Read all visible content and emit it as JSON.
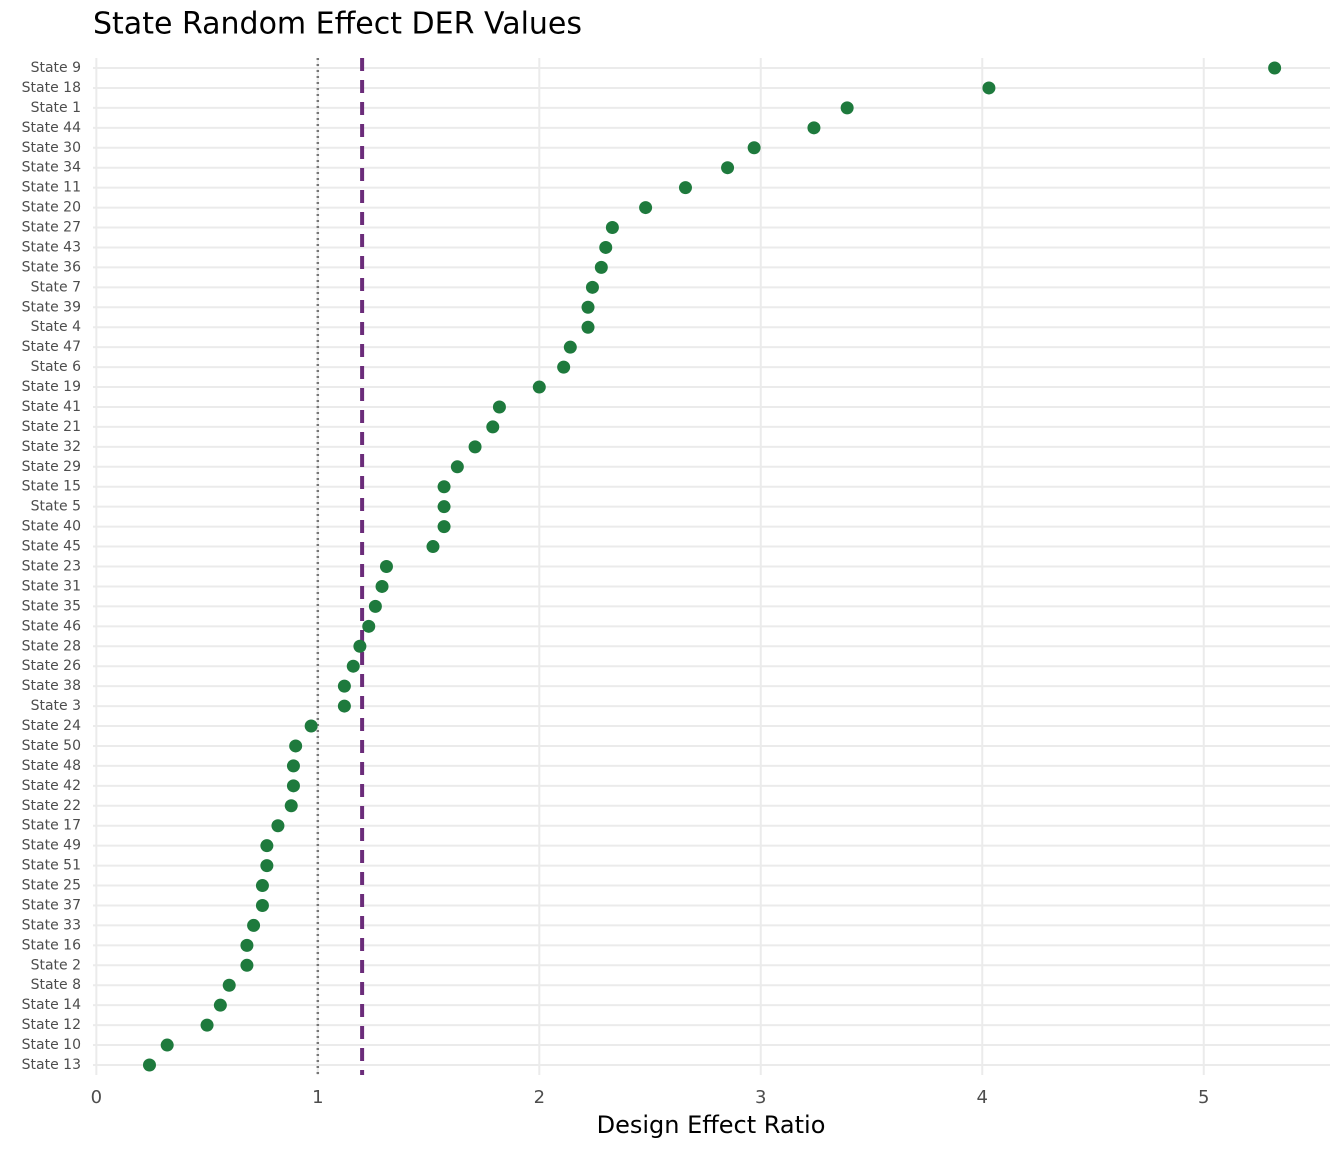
{
  "chart_data": {
    "type": "dot",
    "title": "State Random Effect DER Values",
    "x_label": "Design Effect Ratio",
    "categories": [
      "State 9",
      "State 18",
      "State 1",
      "State 44",
      "State 30",
      "State 34",
      "State 11",
      "State 20",
      "State 27",
      "State 43",
      "State 36",
      "State 7",
      "State 39",
      "State 4",
      "State 47",
      "State 6",
      "State 19",
      "State 41",
      "State 21",
      "State 32",
      "State 29",
      "State 15",
      "State 5",
      "State 40",
      "State 45",
      "State 23",
      "State 31",
      "State 35",
      "State 46",
      "State 28",
      "State 26",
      "State 38",
      "State 3",
      "State 24",
      "State 50",
      "State 48",
      "State 42",
      "State 22",
      "State 17",
      "State 49",
      "State 51",
      "State 25",
      "State 37",
      "State 33",
      "State 16",
      "State 2",
      "State 8",
      "State 14",
      "State 12",
      "State 10",
      "State 13"
    ],
    "values": [
      5.32,
      4.03,
      3.39,
      3.24,
      2.97,
      2.85,
      2.66,
      2.48,
      2.33,
      2.3,
      2.28,
      2.24,
      2.22,
      2.22,
      2.14,
      2.11,
      2.0,
      1.82,
      1.79,
      1.71,
      1.63,
      1.57,
      1.57,
      1.57,
      1.52,
      1.31,
      1.29,
      1.26,
      1.23,
      1.19,
      1.16,
      1.12,
      1.12,
      0.97,
      0.9,
      0.89,
      0.89,
      0.88,
      0.82,
      0.77,
      0.77,
      0.75,
      0.75,
      0.71,
      0.68,
      0.68,
      0.6,
      0.56,
      0.5,
      0.32,
      0.24
    ],
    "color": "#1e7a3d",
    "xlim": [
      -0.015,
      5.57
    ],
    "xticks": [
      0,
      1,
      2,
      3,
      4,
      5
    ],
    "grid": true,
    "reference_lines": [
      {
        "value": 1,
        "color": "#777777",
        "style": "dotted"
      },
      {
        "value": 1.2,
        "color": "#6b2c7a",
        "style": "dashed"
      }
    ]
  }
}
